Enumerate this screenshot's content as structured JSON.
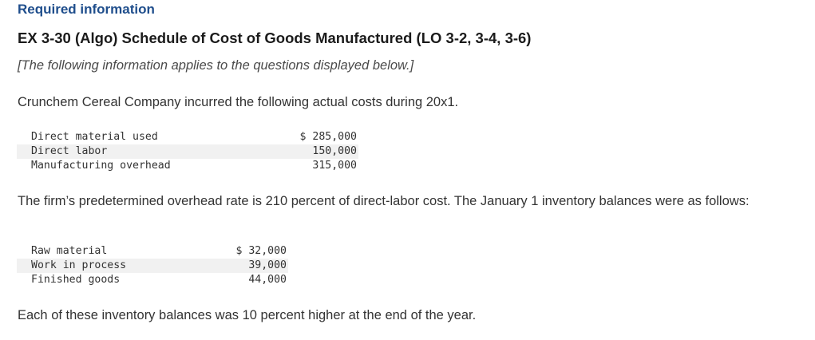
{
  "header": {
    "required_label": "Required information",
    "exercise_title": "EX 3-30 (Algo) Schedule of Cost of Goods Manufactured (LO 3-2, 3-4, 3-6)",
    "intro_note": "[The following information applies to the questions displayed below.]"
  },
  "body": {
    "para1": "Crunchem Cereal Company incurred the following actual costs during 20x1.",
    "para2": "The firm’s predetermined overhead rate is 210 percent of direct-labor cost. The January 1 inventory balances were as follows:",
    "para3": "Each of these inventory balances was 10 percent higher at the end of the year."
  },
  "costs_table": {
    "rows": [
      {
        "label": "Direct material used",
        "amount": "$ 285,000"
      },
      {
        "label": "Direct labor",
        "amount": "150,000"
      },
      {
        "label": "Manufacturing overhead",
        "amount": "315,000"
      }
    ]
  },
  "inventory_table": {
    "rows": [
      {
        "label": "Raw material",
        "amount": "$ 32,000"
      },
      {
        "label": "Work in process",
        "amount": "39,000"
      },
      {
        "label": "Finished goods",
        "amount": "44,000"
      }
    ]
  }
}
